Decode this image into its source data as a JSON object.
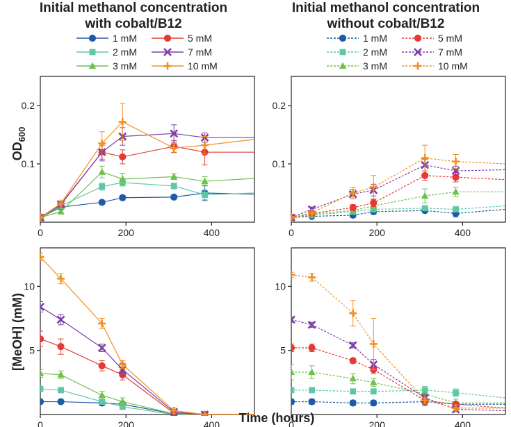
{
  "colors": {
    "1 mM": "#1f5aa6",
    "2 mM": "#5fc7a6",
    "3 mM": "#6dc24b",
    "5 mM": "#e53935",
    "7 mM": "#7b3fa6",
    "10 mM": "#f0901e"
  },
  "legend_left": {
    "title_line1": "Initial methanol concentration",
    "title_line2": "with cobalt/B12",
    "entries": [
      "1 mM",
      "5 mM",
      "2 mM",
      "7 mM",
      "3 mM",
      "10 mM"
    ]
  },
  "legend_right": {
    "title_line1": "Initial methanol concentration",
    "title_line2": "without cobalt/B12",
    "entries": [
      "1 mM",
      "5 mM",
      "2 mM",
      "7 mM",
      "3 mM",
      "10 mM"
    ]
  },
  "axes_labels": {
    "od_sub": "600",
    "od_main": "OD",
    "meoh": "[MeOH] (mM)",
    "xlabel": "Time  (hours)"
  },
  "chart_data": [
    {
      "type": "line",
      "panel": "top-left",
      "condition": "with cobalt/B12",
      "ylabel": "OD600",
      "xlabel": "Time (hours)",
      "xlim": [
        0,
        500
      ],
      "ylim": [
        0,
        0.25
      ],
      "xticks": [
        0,
        200,
        400
      ],
      "yticks": [
        0.1,
        0.2
      ],
      "xtick_labels": [
        "0",
        "200",
        "400"
      ],
      "ytick_labels": [
        "0.1",
        "0.2"
      ],
      "x": [
        0,
        48,
        144,
        192,
        312,
        384
      ],
      "series": [
        {
          "name": "1 mM",
          "marker": "circle",
          "values": [
            0.008,
            0.026,
            0.034,
            0.042,
            0.043,
            0.05
          ],
          "err": [
            0.002,
            0.003,
            0.002,
            0.004,
            0.003,
            0.013
          ],
          "extend_to": 0.048
        },
        {
          "name": "2 mM",
          "marker": "square",
          "values": [
            0.008,
            0.028,
            0.061,
            0.068,
            0.062,
            0.047
          ],
          "err": [
            0.002,
            0.003,
            0.006,
            0.006,
            0.005,
            0.008
          ],
          "extend_to": 0.05
        },
        {
          "name": "3 mM",
          "marker": "triangle",
          "values": [
            0.008,
            0.018,
            0.086,
            0.074,
            0.078,
            0.07
          ],
          "err": [
            0.002,
            0.003,
            0.01,
            0.01,
            0.005,
            0.008
          ],
          "extend_to": 0.075
        },
        {
          "name": "5 mM",
          "marker": "circle",
          "values": [
            0.008,
            0.03,
            0.12,
            0.112,
            0.13,
            0.12
          ],
          "err": [
            0.002,
            0.004,
            0.012,
            0.012,
            0.01,
            0.022
          ],
          "extend_to": 0.12
        },
        {
          "name": "7 mM",
          "marker": "x",
          "values": [
            0.008,
            0.031,
            0.12,
            0.147,
            0.152,
            0.145
          ],
          "err": [
            0.002,
            0.004,
            0.015,
            0.015,
            0.015,
            0.008
          ],
          "extend_to": 0.145
        },
        {
          "name": "10 mM",
          "marker": "plus",
          "values": [
            0.008,
            0.032,
            0.135,
            0.172,
            0.127,
            0.132
          ],
          "err": [
            0.002,
            0.004,
            0.02,
            0.032,
            0.008,
            0.015
          ],
          "extend_to": 0.142
        }
      ]
    },
    {
      "type": "line",
      "panel": "top-right",
      "condition": "without cobalt/B12",
      "ylabel": "OD600",
      "xlabel": "Time (hours)",
      "xlim": [
        0,
        500
      ],
      "ylim": [
        0,
        0.25
      ],
      "xticks": [
        0,
        200,
        400
      ],
      "yticks": [
        0.1,
        0.2
      ],
      "xtick_labels": [
        "0",
        "200",
        "400"
      ],
      "ytick_labels": [
        "0.1",
        "0.2"
      ],
      "x": [
        0,
        48,
        144,
        192,
        312,
        384
      ],
      "series": [
        {
          "name": "1 mM",
          "marker": "circle",
          "values": [
            0.008,
            0.01,
            0.012,
            0.018,
            0.02,
            0.015
          ],
          "err": [
            0.002,
            0.002,
            0.004,
            0.004,
            0.004,
            0.006
          ],
          "extend_to": 0.022
        },
        {
          "name": "2 mM",
          "marker": "square",
          "values": [
            0.008,
            0.012,
            0.018,
            0.022,
            0.024,
            0.022
          ],
          "err": [
            0.002,
            0.002,
            0.004,
            0.004,
            0.004,
            0.004
          ],
          "extend_to": 0.028
        },
        {
          "name": "3 mM",
          "marker": "triangle",
          "values": [
            0.008,
            0.014,
            0.02,
            0.028,
            0.045,
            0.052
          ],
          "err": [
            0.002,
            0.002,
            0.004,
            0.005,
            0.012,
            0.008
          ],
          "extend_to": 0.052
        },
        {
          "name": "5 mM",
          "marker": "circle",
          "values": [
            0.008,
            0.015,
            0.025,
            0.033,
            0.08,
            0.077
          ],
          "err": [
            0.002,
            0.003,
            0.005,
            0.006,
            0.008,
            0.008
          ],
          "extend_to": 0.073
        },
        {
          "name": "7 mM",
          "marker": "x",
          "values": [
            0.008,
            0.022,
            0.048,
            0.055,
            0.098,
            0.088
          ],
          "err": [
            0.002,
            0.004,
            0.008,
            0.01,
            0.01,
            0.008
          ],
          "extend_to": 0.09
        },
        {
          "name": "10 mM",
          "marker": "plus",
          "values": [
            0.008,
            0.016,
            0.05,
            0.06,
            0.11,
            0.104
          ],
          "err": [
            0.002,
            0.003,
            0.01,
            0.02,
            0.022,
            0.012
          ],
          "extend_to": 0.1
        }
      ]
    },
    {
      "type": "line",
      "panel": "bottom-left",
      "condition": "with cobalt/B12",
      "ylabel": "[MeOH] (mM)",
      "xlabel": "Time (hours)",
      "xlim": [
        0,
        500
      ],
      "ylim": [
        0,
        13
      ],
      "xticks": [
        0,
        200,
        400
      ],
      "yticks": [
        5,
        10
      ],
      "xtick_labels": [
        "0",
        "200",
        "400"
      ],
      "ytick_labels": [
        "5",
        "10"
      ],
      "x": [
        0,
        48,
        144,
        192,
        312,
        384
      ],
      "series": [
        {
          "name": "1 mM",
          "marker": "circle",
          "values": [
            1.0,
            1.0,
            0.9,
            0.8,
            0.05,
            0.0
          ],
          "err": [
            0.1,
            0.1,
            0.2,
            0.2,
            0.05,
            0.05
          ],
          "extend_to": 0.0
        },
        {
          "name": "2 mM",
          "marker": "square",
          "values": [
            2.0,
            1.9,
            1.0,
            0.6,
            0.0,
            0.0
          ],
          "err": [
            0.2,
            0.2,
            0.2,
            0.2,
            0.05,
            0.05
          ],
          "extend_to": 0.0
        },
        {
          "name": "3 mM",
          "marker": "triangle",
          "values": [
            3.2,
            3.1,
            1.5,
            1.0,
            0.05,
            0.0
          ],
          "err": [
            0.3,
            0.3,
            0.3,
            0.3,
            0.05,
            0.05
          ],
          "extend_to": 0.0
        },
        {
          "name": "5 mM",
          "marker": "circle",
          "values": [
            5.9,
            5.3,
            3.8,
            3.1,
            0.1,
            0.0
          ],
          "err": [
            0.6,
            0.6,
            0.4,
            0.4,
            0.1,
            0.05
          ],
          "extend_to": 0.0
        },
        {
          "name": "7 mM",
          "marker": "x",
          "values": [
            8.4,
            7.4,
            5.2,
            3.5,
            0.2,
            0.0
          ],
          "err": [
            0.4,
            0.4,
            0.3,
            0.5,
            0.1,
            0.05
          ],
          "extend_to": 0.0
        },
        {
          "name": "10 mM",
          "marker": "plus",
          "values": [
            12.3,
            10.6,
            7.1,
            3.9,
            0.3,
            0.0
          ],
          "err": [
            0.3,
            0.4,
            0.4,
            0.3,
            0.2,
            0.05
          ],
          "extend_to": 0.0
        }
      ]
    },
    {
      "type": "line",
      "panel": "bottom-right",
      "condition": "without cobalt/B12",
      "ylabel": "[MeOH] (mM)",
      "xlabel": "Time (hours)",
      "xlim": [
        0,
        500
      ],
      "ylim": [
        0,
        13
      ],
      "xticks": [
        0,
        200,
        400
      ],
      "yticks": [
        5,
        10
      ],
      "xtick_labels": [
        "0",
        "200",
        "400"
      ],
      "ytick_labels": [
        "5",
        "10"
      ],
      "x": [
        0,
        48,
        144,
        192,
        312,
        384
      ],
      "series": [
        {
          "name": "1 mM",
          "marker": "circle",
          "values": [
            1.0,
            1.0,
            0.9,
            0.9,
            1.0,
            0.8
          ],
          "err": [
            0.2,
            0.2,
            0.2,
            0.2,
            0.3,
            0.2
          ],
          "extend_to": 0.8
        },
        {
          "name": "2 mM",
          "marker": "square",
          "values": [
            1.9,
            1.9,
            1.8,
            1.8,
            1.9,
            1.7
          ],
          "err": [
            0.2,
            0.2,
            0.2,
            0.2,
            0.3,
            0.3
          ],
          "extend_to": 1.3
        },
        {
          "name": "3 mM",
          "marker": "triangle",
          "values": [
            3.3,
            3.3,
            2.8,
            2.5,
            1.6,
            0.9
          ],
          "err": [
            0.6,
            0.5,
            0.4,
            0.3,
            0.3,
            0.3
          ],
          "extend_to": 0.9
        },
        {
          "name": "5 mM",
          "marker": "circle",
          "values": [
            5.2,
            5.2,
            4.2,
            3.5,
            1.1,
            0.8
          ],
          "err": [
            0.3,
            0.3,
            0.2,
            0.3,
            0.3,
            0.2
          ],
          "extend_to": 0.5
        },
        {
          "name": "7 mM",
          "marker": "x",
          "values": [
            7.4,
            7.0,
            5.4,
            3.9,
            1.3,
            0.4
          ],
          "err": [
            0.2,
            0.2,
            0.2,
            0.4,
            0.3,
            0.2
          ],
          "extend_to": 0.3
        },
        {
          "name": "10 mM",
          "marker": "plus",
          "values": [
            10.9,
            10.7,
            7.9,
            5.5,
            1.1,
            0.5
          ],
          "err": [
            0.2,
            0.3,
            1.0,
            2.0,
            0.2,
            0.2
          ],
          "extend_to": 0.5
        }
      ]
    }
  ]
}
